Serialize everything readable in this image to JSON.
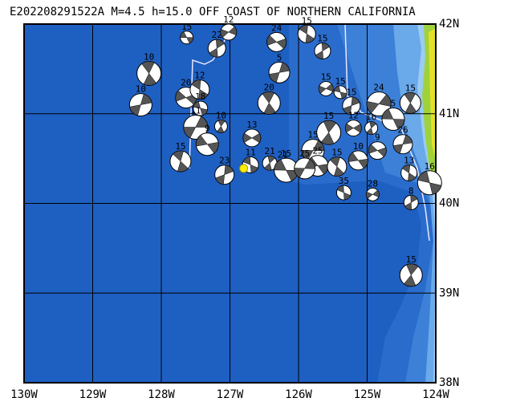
{
  "chart_data": {
    "type": "focal-map",
    "title": "E202208291522A  M=4.5  h=15.0  OFF COAST OF NORTHERN CALIFORNIA",
    "xlim": [
      -130,
      -124
    ],
    "ylim": [
      38,
      42
    ],
    "xticks": [
      {
        "value": -130,
        "label": "130W"
      },
      {
        "value": -129,
        "label": "129W"
      },
      {
        "value": -128,
        "label": "128W"
      },
      {
        "value": -127,
        "label": "127W"
      },
      {
        "value": -126,
        "label": "126W"
      },
      {
        "value": -125,
        "label": "125W"
      },
      {
        "value": -124,
        "label": "124W"
      }
    ],
    "yticks": [
      {
        "value": 38,
        "label": "38N"
      },
      {
        "value": 39,
        "label": "39N"
      },
      {
        "value": 40,
        "label": "40N"
      },
      {
        "value": 41,
        "label": "41N"
      },
      {
        "value": 42,
        "label": "42N"
      }
    ],
    "grid": true,
    "epicenter": {
      "lon": -126.8,
      "lat": 40.39,
      "color": "#ffee00"
    },
    "events": {
      "lon": [
        -127.63,
        -128.18,
        -128.3,
        -127.64,
        -127.44,
        -127.19,
        -127.02,
        -127.43,
        -127.13,
        -127.5,
        -127.33,
        -127.72,
        -127.08,
        -126.68,
        -126.7,
        -126.42,
        -126.23,
        -126.18,
        -126.43,
        -126.28,
        -126.32,
        -125.88,
        -125.65,
        -125.6,
        -125.39,
        -125.56,
        -125.79,
        -125.72,
        -125.44,
        -125.23,
        -125.2,
        -125.34,
        -124.94,
        -124.83,
        -124.62,
        -124.37,
        -124.48,
        -124.85,
        -124.39,
        -124.36,
        -124.92,
        -124.09,
        -124.36,
        -125.91,
        -125.13
      ],
      "lat": [
        41.85,
        41.45,
        41.1,
        41.18,
        41.27,
        41.73,
        41.91,
        41.06,
        40.86,
        40.85,
        40.66,
        40.47,
        40.32,
        40.73,
        40.43,
        40.45,
        40.42,
        40.37,
        41.12,
        41.46,
        41.8,
        41.89,
        41.7,
        41.28,
        41.24,
        40.79,
        40.59,
        40.42,
        40.41,
        41.09,
        40.84,
        40.12,
        40.84,
        41.11,
        40.94,
        41.12,
        40.66,
        40.59,
        40.34,
        40.01,
        40.1,
        40.23,
        39.2,
        40.39,
        40.48
      ],
      "depth": [
        15,
        10,
        10,
        20,
        12,
        22,
        12,
        18,
        10,
        11,
        9,
        15,
        23,
        13,
        11,
        21,
        21,
        15,
        20,
        5,
        24,
        15,
        15,
        15,
        15,
        15,
        15,
        25,
        15,
        15,
        12,
        35,
        16,
        24,
        5,
        15,
        26,
        9,
        13,
        8,
        28,
        16,
        15,
        25,
        10
      ]
    }
  }
}
